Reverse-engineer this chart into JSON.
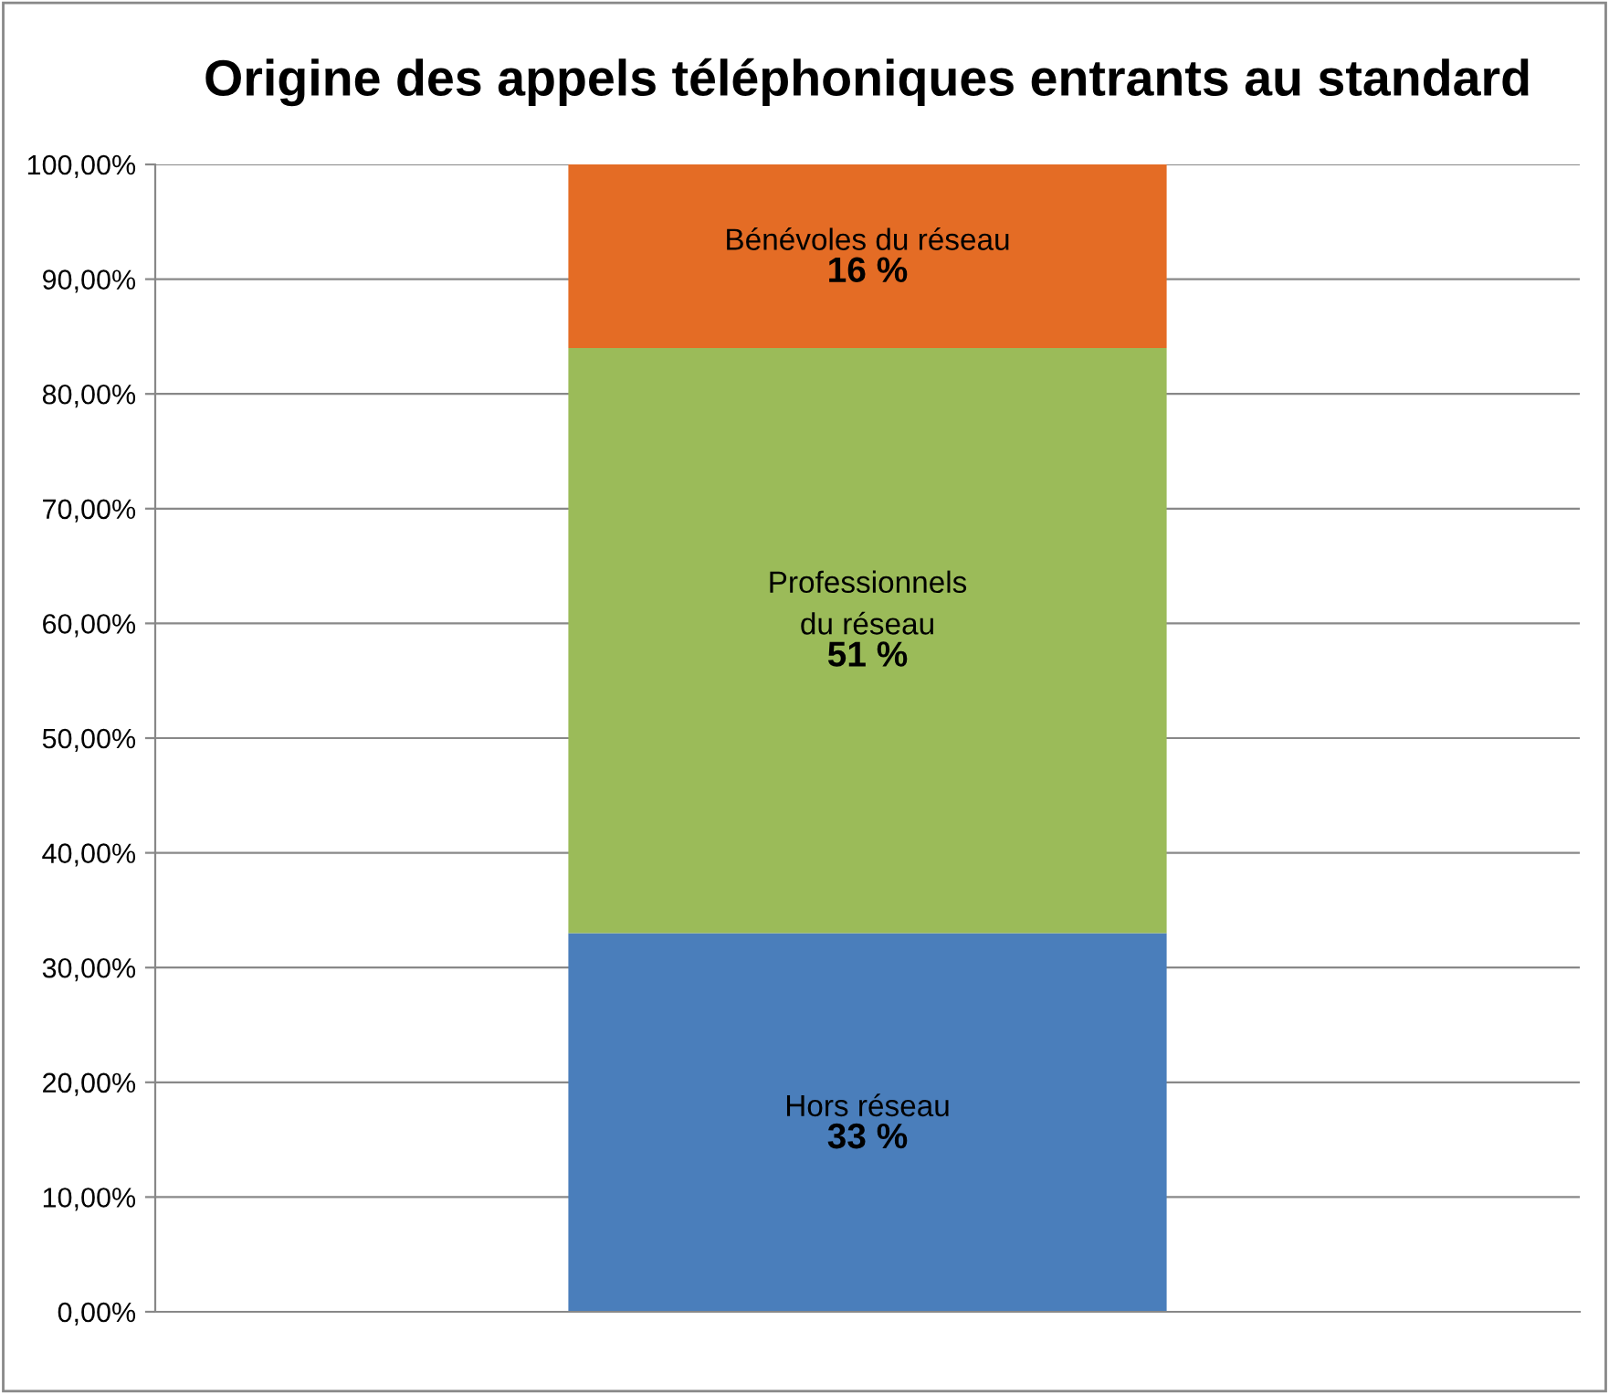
{
  "chart_data": {
    "type": "bar",
    "title": "Origine des appels téléphoniques entrants au standard",
    "categories": [
      null
    ],
    "stacked": true,
    "series": [
      {
        "name": "Hors réseau",
        "color": "#4a7ebb",
        "values": [
          33
        ],
        "value_labels": [
          "33 %"
        ]
      },
      {
        "name": "Professionnels\ndu réseau",
        "color": "#9bbb59",
        "values": [
          51
        ],
        "value_labels": [
          "51 %"
        ]
      },
      {
        "name": "Bénévoles du réseau",
        "color": "#e46c25",
        "values": [
          16
        ],
        "value_labels": [
          "16 %"
        ]
      }
    ],
    "ylim": [
      0,
      100
    ],
    "yticks": [
      {
        "value": 0,
        "label": "0,00%"
      },
      {
        "value": 10,
        "label": "10,00%"
      },
      {
        "value": 20,
        "label": "20,00%"
      },
      {
        "value": 30,
        "label": "30,00%"
      },
      {
        "value": 40,
        "label": "40,00%"
      },
      {
        "value": 50,
        "label": "50,00%"
      },
      {
        "value": 60,
        "label": "60,00%"
      },
      {
        "value": 70,
        "label": "70,00%"
      },
      {
        "value": 80,
        "label": "80,00%"
      },
      {
        "value": 90,
        "label": "90,00%"
      },
      {
        "value": 100,
        "label": "100,00%"
      }
    ],
    "grid": "y",
    "legend": false
  }
}
